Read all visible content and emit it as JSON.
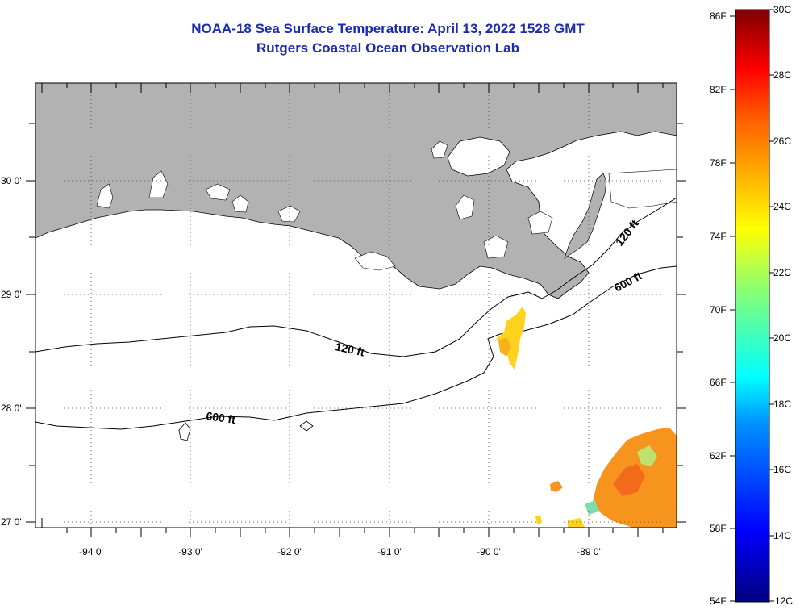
{
  "header": {
    "title": "NOAA-18 Sea Surface Temperature:  April 13, 2022 1528 GMT",
    "subtitle": "Rutgers Coastal Ocean Observation Lab"
  },
  "map": {
    "lon_labels": [
      "-94 0'",
      "-93 0'",
      "-92 0'",
      "-91 0'",
      "-90 0'",
      "-89 0'"
    ],
    "lat_labels": [
      "30 0'",
      "29 0'",
      "28 0'",
      "27 0'"
    ],
    "contour_labels": [
      "120 ft",
      "600 ft",
      "120 ft",
      "600 ft"
    ],
    "colors": {
      "land": "#b2b2b2",
      "water": "#ffffff",
      "sst_warm": "#f7941d",
      "sst_yellow": "#ffd21f"
    }
  },
  "colorbar": {
    "f_labels": [
      "86F",
      "82F",
      "78F",
      "74F",
      "70F",
      "66F",
      "62F",
      "58F",
      "54F"
    ],
    "c_labels": [
      "30C",
      "28C",
      "26C",
      "24C",
      "22C",
      "20C",
      "18C",
      "16C",
      "14C",
      "12C"
    ]
  }
}
